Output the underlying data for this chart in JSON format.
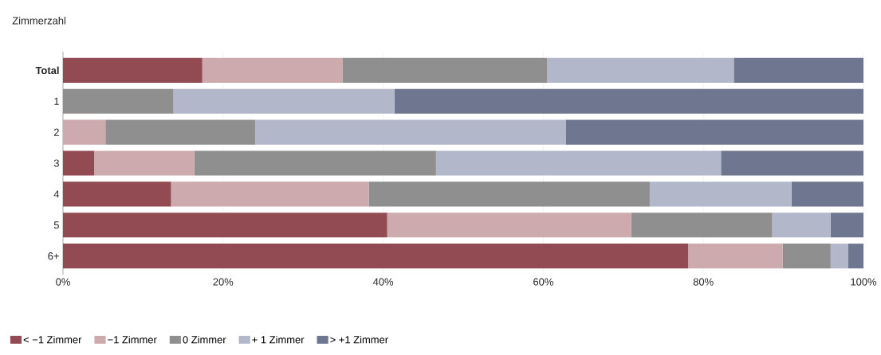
{
  "chart_data": {
    "type": "bar",
    "orientation": "horizontal",
    "stacked": true,
    "ylabel": "Zimmerzahl",
    "categories": [
      "**Total**",
      "1",
      "2",
      "3",
      "4",
      "5",
      "6+"
    ],
    "series": [
      {
        "name": "< −1 Zimmer",
        "color": "#924b53",
        "values": [
          17.4,
          0,
          0,
          3.9,
          13.5,
          40.5,
          78.1
        ]
      },
      {
        "name": "−1 Zimmer",
        "color": "#cdaaae",
        "values": [
          17.5,
          0,
          5.3,
          12.5,
          24.7,
          30.5,
          11.8
        ]
      },
      {
        "name": "0 Zimmer",
        "color": "#8f8f8f",
        "values": [
          25.6,
          13.8,
          18.7,
          30.2,
          35.1,
          17.6,
          6.0
        ]
      },
      {
        "name": "+ 1 Zimmer",
        "color": "#b3b7ca",
        "values": [
          23.3,
          27.6,
          38.8,
          35.6,
          17.7,
          7.3,
          2.2
        ]
      },
      {
        "name": "> +1 Zimmer",
        "color": "#6f768f",
        "values": [
          16.2,
          58.6,
          37.2,
          17.8,
          9.0,
          4.1,
          1.9
        ]
      }
    ],
    "xlim": [
      0,
      100
    ],
    "xticks": [
      {
        "value": 0,
        "label": "0%"
      },
      {
        "value": 20,
        "label": "20%"
      },
      {
        "value": 40,
        "label": "40%"
      },
      {
        "value": 60,
        "label": "60%"
      },
      {
        "value": 80,
        "label": "80%"
      },
      {
        "value": 100,
        "label": "100%"
      }
    ],
    "grid": "x",
    "legend": "bottom"
  }
}
